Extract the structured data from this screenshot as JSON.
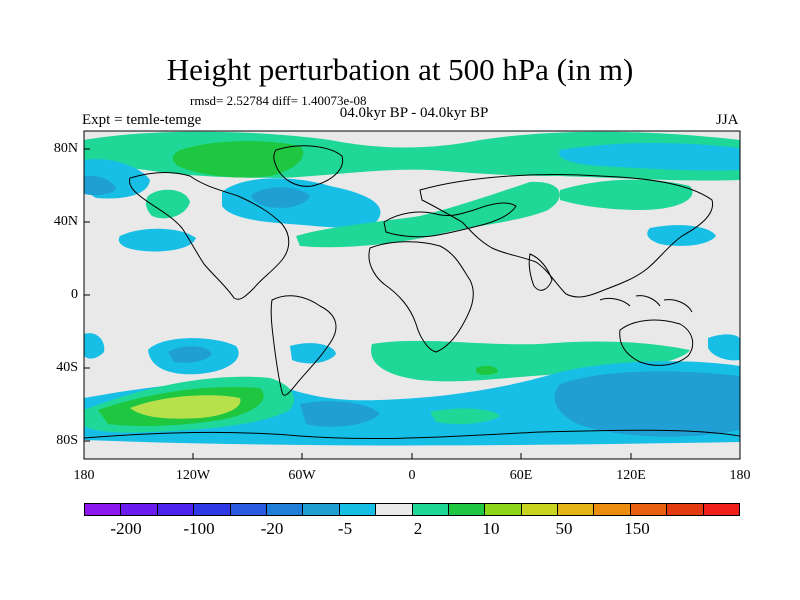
{
  "title": "Height perturbation at 500 hPa (in m)",
  "stats_line": "rmsd= 2.52784 diff= 1.40073e-08",
  "period_line": "04.0kyr BP - 04.0kyr BP",
  "experiment_label": "Expt = temle-temge",
  "season_label": "JJA",
  "lat_ticks": [
    "80N",
    "40N",
    "0",
    "40S",
    "80S"
  ],
  "lon_ticks": [
    "180",
    "120W",
    "60W",
    "0",
    "60E",
    "120E",
    "180"
  ],
  "colorbar": {
    "colors": [
      "#8c16ee",
      "#6a1bee",
      "#4b24ee",
      "#2f3ae6",
      "#2a5be0",
      "#1f7fd9",
      "#1f9fd4",
      "#17bfe6",
      "#e9e9e9",
      "#1fd796",
      "#1fc740",
      "#8ed61a",
      "#c9d41e",
      "#e2b415",
      "#ec8d10",
      "#ea6010",
      "#e43a10",
      "#f0201c"
    ],
    "tick_labels": [
      "-200",
      "-100",
      "-20",
      "-5",
      "2",
      "10",
      "50",
      "150"
    ]
  },
  "map_colors": {
    "background": "#e9e9e9",
    "light_blue": "#17bfe6",
    "mid_blue": "#1f9fd4",
    "teal_green": "#1fd796",
    "green": "#1fc740",
    "yellow_green": "#b8e04a",
    "coast": "#000000"
  }
}
